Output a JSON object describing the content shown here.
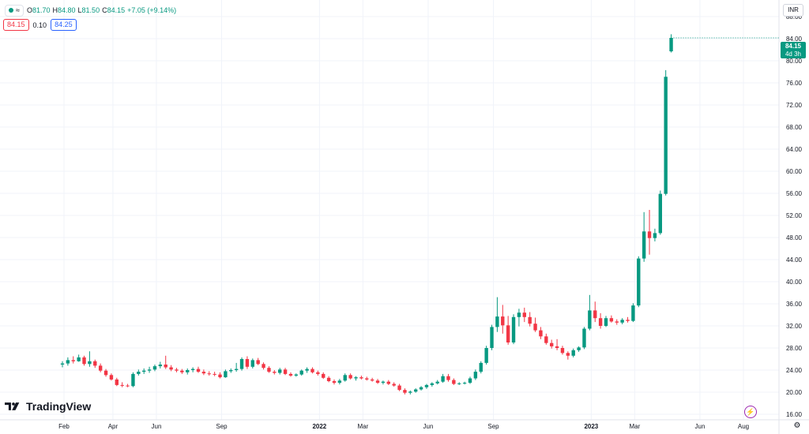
{
  "legend": {
    "o_label": "O",
    "o_value": "81.70",
    "h_label": "H",
    "h_value": "84.80",
    "l_label": "L",
    "l_value": "81.50",
    "c_label": "C",
    "c_value": "84.15",
    "change": "+7.05 (+9.14%)",
    "wave_glyph": "≈",
    "status_color": "#089981"
  },
  "quote": {
    "bid": "84.15",
    "spread": "0.10",
    "ask": "84.25"
  },
  "currency": "INR",
  "last_price": {
    "price": "84.15",
    "countdown": "4d 3h"
  },
  "brand": {
    "name": "TradingView"
  },
  "icons": {
    "alert": "lightning-icon",
    "settings": "gear-icon"
  },
  "colors": {
    "up": "#089981",
    "down": "#f23645",
    "grid": "#f0f3fa"
  },
  "chart_data": {
    "type": "candlestick",
    "interval": "weekly",
    "ylim": [
      15,
      91
    ],
    "yticks": [
      "88.00",
      "84.00",
      "80.00",
      "76.00",
      "72.00",
      "68.00",
      "64.00",
      "60.00",
      "56.00",
      "52.00",
      "48.00",
      "44.00",
      "40.00",
      "36.00",
      "32.00",
      "28.00",
      "24.00",
      "20.00",
      "16.00"
    ],
    "xticks": [
      {
        "label": "Feb",
        "index": 0
      },
      {
        "label": "Apr",
        "index": 9
      },
      {
        "label": "Jun",
        "index": 17
      },
      {
        "label": "Sep",
        "index": 29
      },
      {
        "label": "2022",
        "index": 47
      },
      {
        "label": "Mar",
        "index": 55
      },
      {
        "label": "Jun",
        "index": 67
      },
      {
        "label": "Sep",
        "index": 79
      },
      {
        "label": "2023",
        "index": 97
      },
      {
        "label": "Mar",
        "index": 105
      },
      {
        "label": "Jun",
        "index": 117
      },
      {
        "label": "Aug",
        "index": 125
      }
    ],
    "candles": [
      [
        25.0,
        25.6,
        24.5,
        25.2
      ],
      [
        25.2,
        26.3,
        24.8,
        25.8
      ],
      [
        25.8,
        26.5,
        25.2,
        25.6
      ],
      [
        25.6,
        26.8,
        25.5,
        26.3
      ],
      [
        26.3,
        26.6,
        24.8,
        25.1
      ],
      [
        25.1,
        27.4,
        24.6,
        25.6
      ],
      [
        25.6,
        25.9,
        24.4,
        24.8
      ],
      [
        24.8,
        25.2,
        23.6,
        23.9
      ],
      [
        23.9,
        24.2,
        22.8,
        23.1
      ],
      [
        23.1,
        23.4,
        22.1,
        22.3
      ],
      [
        22.3,
        22.6,
        21.1,
        21.3
      ],
      [
        21.3,
        21.8,
        20.9,
        21.2
      ],
      [
        21.2,
        21.5,
        20.9,
        21.1
      ],
      [
        21.1,
        23.6,
        20.9,
        23.3
      ],
      [
        23.3,
        24.1,
        23.0,
        23.7
      ],
      [
        23.7,
        24.3,
        23.3,
        23.9
      ],
      [
        23.9,
        24.6,
        23.5,
        24.1
      ],
      [
        24.1,
        25.0,
        23.8,
        24.7
      ],
      [
        24.7,
        25.5,
        24.3,
        25.0
      ],
      [
        25.0,
        26.6,
        24.2,
        24.5
      ],
      [
        24.5,
        24.9,
        23.8,
        24.1
      ],
      [
        24.1,
        24.4,
        23.6,
        23.9
      ],
      [
        23.9,
        24.2,
        23.3,
        23.6
      ],
      [
        23.6,
        24.3,
        23.2,
        24.0
      ],
      [
        24.0,
        24.5,
        23.6,
        24.2
      ],
      [
        24.2,
        24.6,
        23.5,
        23.7
      ],
      [
        23.7,
        24.1,
        23.1,
        23.4
      ],
      [
        23.4,
        23.8,
        23.0,
        23.3
      ],
      [
        23.3,
        23.7,
        22.9,
        23.2
      ],
      [
        23.2,
        23.6,
        22.5,
        22.7
      ],
      [
        22.7,
        24.1,
        22.6,
        23.8
      ],
      [
        23.8,
        24.3,
        23.5,
        24.0
      ],
      [
        24.0,
        25.3,
        23.7,
        24.2
      ],
      [
        24.2,
        26.3,
        23.9,
        26.0
      ],
      [
        26.0,
        26.5,
        24.2,
        24.6
      ],
      [
        24.6,
        26.1,
        24.3,
        25.8
      ],
      [
        25.8,
        26.2,
        24.9,
        25.1
      ],
      [
        25.1,
        25.4,
        24.1,
        24.4
      ],
      [
        24.4,
        24.7,
        23.5,
        23.7
      ],
      [
        23.7,
        24.0,
        23.2,
        23.5
      ],
      [
        23.5,
        24.4,
        23.2,
        24.1
      ],
      [
        24.1,
        24.4,
        23.1,
        23.3
      ],
      [
        23.3,
        23.6,
        22.8,
        23.0
      ],
      [
        23.0,
        23.4,
        22.8,
        23.2
      ],
      [
        23.2,
        24.1,
        23.0,
        23.9
      ],
      [
        23.9,
        24.5,
        23.5,
        24.2
      ],
      [
        24.2,
        24.5,
        23.4,
        23.6
      ],
      [
        23.6,
        23.9,
        23.0,
        23.3
      ],
      [
        23.3,
        23.6,
        22.4,
        22.6
      ],
      [
        22.6,
        22.9,
        21.8,
        22.0
      ],
      [
        22.0,
        22.3,
        21.4,
        21.7
      ],
      [
        21.7,
        22.4,
        21.4,
        22.1
      ],
      [
        22.1,
        23.4,
        21.9,
        23.1
      ],
      [
        23.1,
        23.4,
        22.3,
        22.5
      ],
      [
        22.5,
        22.9,
        22.1,
        22.7
      ],
      [
        22.7,
        23.0,
        22.3,
        22.5
      ],
      [
        22.5,
        22.8,
        22.1,
        22.3
      ],
      [
        22.3,
        22.6,
        21.9,
        22.1
      ],
      [
        22.1,
        22.4,
        21.5,
        21.7
      ],
      [
        21.7,
        22.1,
        21.4,
        21.9
      ],
      [
        21.9,
        22.2,
        21.3,
        21.5
      ],
      [
        21.5,
        21.8,
        21.0,
        21.2
      ],
      [
        21.2,
        21.5,
        20.2,
        20.4
      ],
      [
        20.4,
        20.7,
        19.6,
        19.9
      ],
      [
        19.9,
        20.3,
        19.6,
        20.1
      ],
      [
        20.1,
        20.7,
        19.9,
        20.5
      ],
      [
        20.5,
        21.1,
        20.3,
        20.9
      ],
      [
        20.9,
        21.5,
        20.6,
        21.3
      ],
      [
        21.3,
        21.8,
        21.0,
        21.6
      ],
      [
        21.6,
        22.2,
        21.4,
        21.9
      ],
      [
        21.9,
        23.3,
        21.7,
        22.9
      ],
      [
        22.9,
        23.3,
        21.9,
        22.2
      ],
      [
        22.2,
        22.5,
        21.3,
        21.5
      ],
      [
        21.5,
        21.8,
        21.3,
        21.6
      ],
      [
        21.6,
        21.9,
        21.4,
        21.7
      ],
      [
        21.7,
        22.8,
        21.5,
        22.5
      ],
      [
        22.5,
        24.1,
        22.2,
        23.7
      ],
      [
        23.7,
        25.6,
        23.4,
        25.3
      ],
      [
        25.3,
        28.4,
        25.0,
        28.0
      ],
      [
        28.0,
        32.2,
        27.6,
        31.8
      ],
      [
        31.8,
        37.2,
        30.9,
        33.7
      ],
      [
        33.7,
        35.8,
        30.6,
        32.1
      ],
      [
        32.1,
        33.8,
        28.6,
        29.0
      ],
      [
        29.0,
        34.1,
        28.7,
        33.6
      ],
      [
        33.6,
        35.1,
        31.9,
        34.4
      ],
      [
        34.4,
        35.3,
        32.7,
        33.6
      ],
      [
        33.6,
        34.5,
        31.9,
        32.4
      ],
      [
        32.4,
        33.5,
        30.9,
        31.2
      ],
      [
        31.2,
        31.8,
        29.6,
        30.1
      ],
      [
        30.1,
        30.6,
        28.6,
        28.9
      ],
      [
        28.9,
        29.5,
        27.9,
        28.3
      ],
      [
        28.3,
        29.6,
        27.6,
        28.0
      ],
      [
        28.0,
        28.4,
        26.8,
        27.1
      ],
      [
        27.1,
        27.4,
        25.9,
        26.6
      ],
      [
        26.6,
        27.9,
        26.3,
        27.6
      ],
      [
        27.6,
        28.3,
        27.3,
        28.1
      ],
      [
        28.1,
        31.8,
        27.8,
        31.5
      ],
      [
        31.5,
        37.6,
        31.2,
        34.8
      ],
      [
        34.8,
        36.4,
        32.7,
        33.4
      ],
      [
        33.4,
        34.3,
        31.5,
        32.0
      ],
      [
        32.0,
        33.8,
        31.8,
        33.4
      ],
      [
        33.4,
        33.9,
        32.6,
        32.8
      ],
      [
        32.8,
        33.2,
        32.2,
        32.6
      ],
      [
        32.6,
        33.4,
        32.3,
        33.1
      ],
      [
        33.1,
        33.6,
        32.6,
        32.9
      ],
      [
        32.9,
        36.1,
        32.7,
        35.7
      ],
      [
        35.7,
        44.6,
        35.4,
        44.2
      ],
      [
        44.2,
        52.6,
        43.6,
        49.1
      ],
      [
        49.1,
        53.0,
        44.9,
        47.9
      ],
      [
        47.9,
        49.6,
        47.3,
        48.8
      ],
      [
        48.8,
        56.5,
        48.5,
        55.9
      ],
      [
        55.9,
        78.3,
        55.6,
        77.1
      ],
      [
        81.7,
        84.8,
        81.5,
        84.15
      ]
    ]
  }
}
